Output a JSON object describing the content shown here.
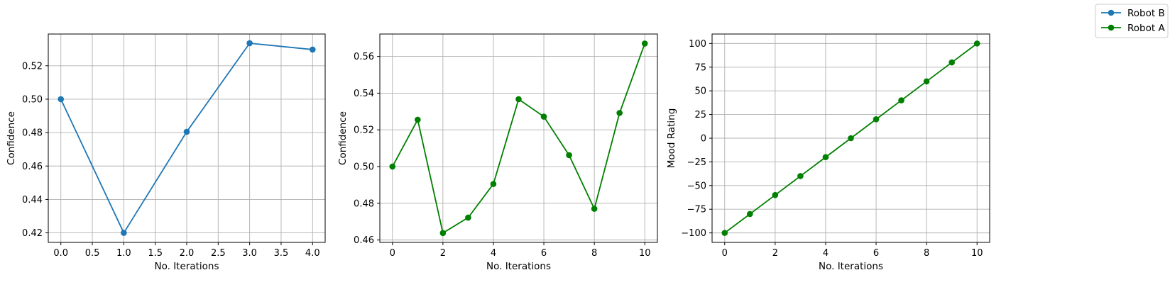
{
  "legend": {
    "placement": "top-right",
    "entries": [
      {
        "label": "Robot B",
        "color": "#1f77b4"
      },
      {
        "label": "Robot A",
        "color": "#008000"
      }
    ]
  },
  "chart_data": [
    {
      "type": "line",
      "xlabel": "No. Iterations",
      "ylabel": "Confidence",
      "grid": true,
      "xlim": [
        -0.2,
        4.2
      ],
      "ylim": [
        0.4143,
        0.539
      ],
      "xticks": [
        "0.0",
        "0.5",
        "1.0",
        "1.5",
        "2.0",
        "2.5",
        "3.0",
        "3.5",
        "4.0"
      ],
      "yticks": [
        "0.42",
        "0.44",
        "0.46",
        "0.48",
        "0.50",
        "0.52"
      ],
      "series": [
        {
          "name": "Robot B",
          "color": "#1f77b4",
          "x": [
            0,
            1,
            2,
            3,
            4
          ],
          "y": [
            0.5,
            0.42,
            0.4805,
            0.5335,
            0.5297
          ]
        }
      ]
    },
    {
      "type": "line",
      "xlabel": "No. Iterations",
      "ylabel": "Confidence",
      "grid": true,
      "xlim": [
        -0.5,
        10.5
      ],
      "ylim": [
        0.4587,
        0.5722
      ],
      "xticks": [
        "0",
        "2",
        "4",
        "6",
        "8",
        "10"
      ],
      "yticks": [
        "0.46",
        "0.48",
        "0.50",
        "0.52",
        "0.54",
        "0.56"
      ],
      "series": [
        {
          "name": "Robot A",
          "color": "#008000",
          "x": [
            0,
            1,
            2,
            3,
            4,
            5,
            6,
            7,
            8,
            9,
            10
          ],
          "y": [
            0.5,
            0.5255,
            0.4638,
            0.4722,
            0.4905,
            0.5367,
            0.5272,
            0.5062,
            0.477,
            0.5292,
            0.567
          ]
        }
      ]
    },
    {
      "type": "line",
      "xlabel": "No. Iterations",
      "ylabel": "Mood Rating",
      "grid": true,
      "xlim": [
        -0.5,
        10.5
      ],
      "ylim": [
        -110,
        110
      ],
      "xticks": [
        "0",
        "2",
        "4",
        "6",
        "8",
        "10"
      ],
      "yticks": [
        "−100",
        "−75",
        "−50",
        "−25",
        "0",
        "25",
        "50",
        "75",
        "100"
      ],
      "series": [
        {
          "name": "Robot A",
          "color": "#008000",
          "x": [
            0,
            1,
            2,
            3,
            4,
            5,
            6,
            7,
            8,
            9,
            10
          ],
          "y": [
            -100,
            -80,
            -60,
            -40,
            -20,
            0,
            20,
            40,
            60,
            80,
            100
          ]
        }
      ]
    }
  ]
}
